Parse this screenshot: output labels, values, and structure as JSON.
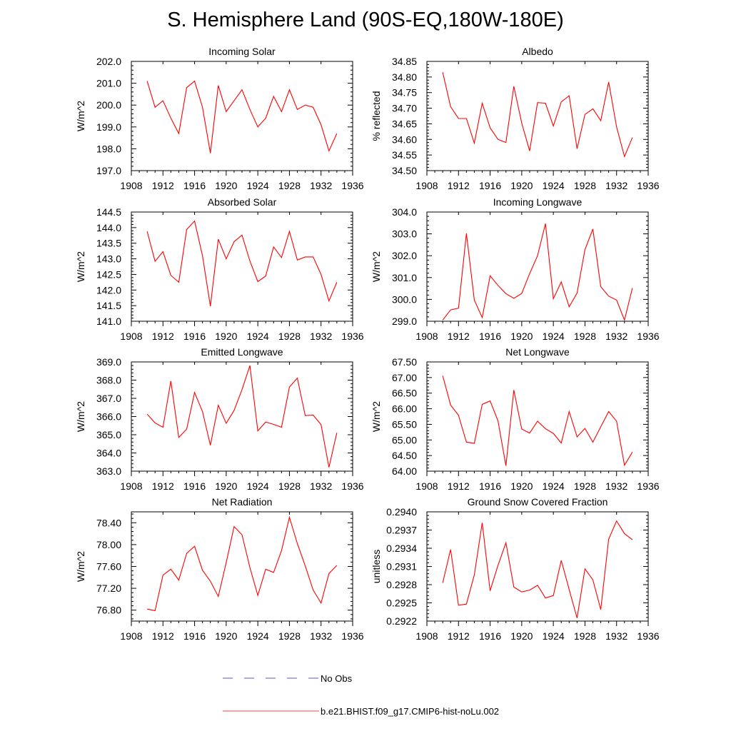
{
  "title": "S. Hemisphere Land (90S-EQ,180W-180E)",
  "colors": {
    "model": "#ff0000",
    "obs": "#2020c0",
    "axis": "#000000"
  },
  "legend": [
    {
      "label": "No Obs",
      "style": "dashed",
      "color": "#2020c0"
    },
    {
      "label": "b.e21.BHIST.f09_g17.CMIP6-hist-noLu.002",
      "style": "solid",
      "color": "#ff0000"
    }
  ],
  "chart_data": [
    {
      "type": "line",
      "title": "Incoming Solar",
      "ylabel": "W/m^2",
      "xlim": [
        1908,
        1936
      ],
      "xticks": [
        1908,
        1912,
        1916,
        1920,
        1924,
        1928,
        1932,
        1936
      ],
      "xtick_labels": [
        "1908",
        "1912",
        "1916",
        "1920",
        "1924",
        "1928",
        "1932",
        "1936"
      ],
      "ylim": [
        197.0,
        202.0
      ],
      "yticks": [
        197.0,
        198.0,
        199.0,
        200.0,
        201.0,
        202.0
      ],
      "ytick_labels": [
        "197.0",
        "198.0",
        "199.0",
        "200.0",
        "201.0",
        "202.0"
      ],
      "x": [
        1910,
        1911,
        1912,
        1913,
        1914,
        1915,
        1916,
        1917,
        1918,
        1919,
        1920,
        1921,
        1922,
        1923,
        1924,
        1925,
        1926,
        1927,
        1928,
        1929,
        1930,
        1931,
        1932,
        1933,
        1934
      ],
      "series": [
        {
          "name": "b.e21.BHIST.f09_g17.CMIP6-hist-noLu.002",
          "values": [
            201.1,
            199.9,
            200.2,
            199.4,
            198.7,
            200.8,
            201.1,
            199.9,
            197.8,
            200.9,
            199.7,
            200.2,
            200.7,
            199.8,
            199.0,
            199.4,
            200.4,
            199.7,
            200.7,
            199.8,
            200.0,
            199.9,
            199.1,
            197.9,
            198.7
          ]
        }
      ]
    },
    {
      "type": "line",
      "title": "Albedo",
      "ylabel": "% reflected",
      "xlim": [
        1908,
        1936
      ],
      "xticks": [
        1908,
        1912,
        1916,
        1920,
        1924,
        1928,
        1932,
        1936
      ],
      "xtick_labels": [
        "1908",
        "1912",
        "1916",
        "1920",
        "1924",
        "1928",
        "1932",
        "1936"
      ],
      "ylim": [
        34.5,
        34.85
      ],
      "yticks": [
        34.5,
        34.55,
        34.6,
        34.65,
        34.7,
        34.75,
        34.8,
        34.85
      ],
      "ytick_labels": [
        "34.50",
        "34.55",
        "34.60",
        "34.65",
        "34.70",
        "34.75",
        "34.80",
        "34.85"
      ],
      "x": [
        1910,
        1911,
        1912,
        1913,
        1914,
        1915,
        1916,
        1917,
        1918,
        1919,
        1920,
        1921,
        1922,
        1923,
        1924,
        1925,
        1926,
        1927,
        1928,
        1929,
        1930,
        1931,
        1932,
        1933,
        1934
      ],
      "series": [
        {
          "name": "b.e21.BHIST.f09_g17.CMIP6-hist-noLu.002",
          "values": [
            34.815,
            34.705,
            34.667,
            34.667,
            34.588,
            34.716,
            34.637,
            34.6,
            34.59,
            34.77,
            34.652,
            34.563,
            34.718,
            34.716,
            34.643,
            34.72,
            34.74,
            34.57,
            34.68,
            34.698,
            34.66,
            34.784,
            34.64,
            34.545,
            34.606
          ]
        }
      ]
    },
    {
      "type": "line",
      "title": "Absorbed Solar",
      "ylabel": "W/m^2",
      "xlim": [
        1908,
        1936
      ],
      "xticks": [
        1908,
        1912,
        1916,
        1920,
        1924,
        1928,
        1932,
        1936
      ],
      "xtick_labels": [
        "1908",
        "1912",
        "1916",
        "1920",
        "1924",
        "1928",
        "1932",
        "1936"
      ],
      "ylim": [
        141.0,
        144.5
      ],
      "yticks": [
        141.0,
        141.5,
        142.0,
        142.5,
        143.0,
        143.5,
        144.0,
        144.5
      ],
      "ytick_labels": [
        "141.0",
        "141.5",
        "142.0",
        "142.5",
        "143.0",
        "143.5",
        "144.0",
        "144.5"
      ],
      "x": [
        1910,
        1911,
        1912,
        1913,
        1914,
        1915,
        1916,
        1917,
        1918,
        1919,
        1920,
        1921,
        1922,
        1923,
        1924,
        1925,
        1926,
        1927,
        1928,
        1929,
        1930,
        1931,
        1932,
        1933,
        1934
      ],
      "series": [
        {
          "name": "b.e21.BHIST.f09_g17.CMIP6-hist-noLu.002",
          "values": [
            143.88,
            142.92,
            143.23,
            142.47,
            142.25,
            143.94,
            144.21,
            143.1,
            141.48,
            143.63,
            143.0,
            143.55,
            143.76,
            142.93,
            142.27,
            142.45,
            143.38,
            143.04,
            143.88,
            142.96,
            143.06,
            143.06,
            142.5,
            141.65,
            142.25
          ]
        }
      ]
    },
    {
      "type": "line",
      "title": "Incoming Longwave",
      "ylabel": "W/m^2",
      "xlim": [
        1908,
        1936
      ],
      "xticks": [
        1908,
        1912,
        1916,
        1920,
        1924,
        1928,
        1932,
        1936
      ],
      "xtick_labels": [
        "1908",
        "1912",
        "1916",
        "1920",
        "1924",
        "1928",
        "1932",
        "1936"
      ],
      "ylim": [
        299.0,
        304.0
      ],
      "yticks": [
        299.0,
        300.0,
        301.0,
        302.0,
        303.0,
        304.0
      ],
      "ytick_labels": [
        "299.0",
        "300.0",
        "301.0",
        "302.0",
        "303.0",
        "304.0"
      ],
      "x": [
        1910,
        1911,
        1912,
        1913,
        1914,
        1915,
        1916,
        1917,
        1918,
        1919,
        1920,
        1921,
        1922,
        1923,
        1924,
        1925,
        1926,
        1927,
        1928,
        1929,
        1930,
        1931,
        1932,
        1933,
        1934
      ],
      "series": [
        {
          "name": "b.e21.BHIST.f09_g17.CMIP6-hist-noLu.002",
          "values": [
            299.05,
            299.52,
            299.6,
            303.02,
            299.97,
            299.17,
            301.08,
            300.64,
            300.26,
            300.05,
            300.27,
            301.18,
            302.0,
            303.47,
            300.03,
            300.8,
            299.66,
            300.29,
            302.28,
            303.22,
            300.58,
            300.15,
            299.97,
            299.05,
            300.52
          ]
        }
      ]
    },
    {
      "type": "line",
      "title": "Emitted Longwave",
      "ylabel": "W/m^2",
      "xlim": [
        1908,
        1936
      ],
      "xticks": [
        1908,
        1912,
        1916,
        1920,
        1924,
        1928,
        1932,
        1936
      ],
      "xtick_labels": [
        "1908",
        "1912",
        "1916",
        "1920",
        "1924",
        "1928",
        "1932",
        "1936"
      ],
      "ylim": [
        363.0,
        369.0
      ],
      "yticks": [
        363.0,
        364.0,
        365.0,
        366.0,
        367.0,
        368.0,
        369.0
      ],
      "ytick_labels": [
        "363.0",
        "364.0",
        "365.0",
        "366.0",
        "367.0",
        "368.0",
        "369.0"
      ],
      "x": [
        1910,
        1911,
        1912,
        1913,
        1914,
        1915,
        1916,
        1917,
        1918,
        1919,
        1920,
        1921,
        1922,
        1923,
        1924,
        1925,
        1926,
        1927,
        1928,
        1929,
        1930,
        1931,
        1932,
        1933,
        1934
      ],
      "series": [
        {
          "name": "b.e21.BHIST.f09_g17.CMIP6-hist-noLu.002",
          "values": [
            366.13,
            365.65,
            365.41,
            367.95,
            364.85,
            365.31,
            367.32,
            366.28,
            364.42,
            366.62,
            365.63,
            366.34,
            367.48,
            368.8,
            365.21,
            365.7,
            365.57,
            365.41,
            367.62,
            368.11,
            366.05,
            366.08,
            365.56,
            363.21,
            365.11
          ]
        }
      ]
    },
    {
      "type": "line",
      "title": "Net Longwave",
      "ylabel": "W/m^2",
      "xlim": [
        1908,
        1936
      ],
      "xticks": [
        1908,
        1912,
        1916,
        1920,
        1924,
        1928,
        1932,
        1936
      ],
      "xtick_labels": [
        "1908",
        "1912",
        "1916",
        "1920",
        "1924",
        "1928",
        "1932",
        "1936"
      ],
      "ylim": [
        64.0,
        67.5
      ],
      "yticks": [
        64.0,
        64.5,
        65.0,
        65.5,
        66.0,
        66.5,
        67.0,
        67.5
      ],
      "ytick_labels": [
        "64.00",
        "64.50",
        "65.00",
        "65.50",
        "66.00",
        "66.50",
        "67.00",
        "67.50"
      ],
      "x": [
        1910,
        1911,
        1912,
        1913,
        1914,
        1915,
        1916,
        1917,
        1918,
        1919,
        1920,
        1921,
        1922,
        1923,
        1924,
        1925,
        1926,
        1927,
        1928,
        1929,
        1930,
        1931,
        1932,
        1933,
        1934
      ],
      "series": [
        {
          "name": "b.e21.BHIST.f09_g17.CMIP6-hist-noLu.002",
          "values": [
            67.06,
            66.12,
            65.79,
            64.93,
            64.89,
            66.14,
            66.25,
            65.61,
            64.17,
            66.6,
            65.35,
            65.22,
            65.6,
            65.36,
            65.21,
            64.9,
            65.91,
            65.1,
            65.37,
            64.93,
            65.42,
            65.91,
            65.6,
            64.19,
            64.61
          ]
        }
      ]
    },
    {
      "type": "line",
      "title": "Net Radiation",
      "ylabel": "W/m^2",
      "xlim": [
        1908,
        1936
      ],
      "xticks": [
        1908,
        1912,
        1916,
        1920,
        1924,
        1928,
        1932,
        1936
      ],
      "xtick_labels": [
        "1908",
        "1912",
        "1916",
        "1920",
        "1924",
        "1928",
        "1932",
        "1936"
      ],
      "ylim": [
        76.6,
        78.6
      ],
      "yticks": [
        76.8,
        77.2,
        77.6,
        78.0,
        78.4
      ],
      "ytick_labels": [
        "76.80",
        "77.20",
        "77.60",
        "78.00",
        "78.40"
      ],
      "x": [
        1910,
        1911,
        1912,
        1913,
        1914,
        1915,
        1916,
        1917,
        1918,
        1919,
        1920,
        1921,
        1922,
        1923,
        1924,
        1925,
        1926,
        1927,
        1928,
        1929,
        1930,
        1931,
        1932,
        1933,
        1934
      ],
      "series": [
        {
          "name": "b.e21.BHIST.f09_g17.CMIP6-hist-noLu.002",
          "values": [
            76.82,
            76.79,
            77.44,
            77.55,
            77.35,
            77.84,
            77.97,
            77.53,
            77.33,
            77.05,
            77.67,
            78.33,
            78.18,
            77.58,
            77.07,
            77.55,
            77.49,
            77.89,
            78.5,
            78.02,
            77.61,
            77.17,
            76.93,
            77.47,
            77.62
          ]
        }
      ]
    },
    {
      "type": "line",
      "title": "Ground Snow Covered Fraction",
      "ylabel": "unitless",
      "xlim": [
        1908,
        1936
      ],
      "xticks": [
        1908,
        1912,
        1916,
        1920,
        1924,
        1928,
        1932,
        1936
      ],
      "xtick_labels": [
        "1908",
        "1912",
        "1916",
        "1920",
        "1924",
        "1928",
        "1932",
        "1936"
      ],
      "ylim": [
        0.2922,
        0.294
      ],
      "yticks": [
        0.2922,
        0.2925,
        0.2928,
        0.2931,
        0.2934,
        0.2937,
        0.294
      ],
      "ytick_labels": [
        "0.2922",
        "0.2925",
        "0.2928",
        "0.2931",
        "0.2934",
        "0.2937",
        "0.2940"
      ],
      "x": [
        1910,
        1911,
        1912,
        1913,
        1914,
        1915,
        1916,
        1917,
        1918,
        1919,
        1920,
        1921,
        1922,
        1923,
        1924,
        1925,
        1926,
        1927,
        1928,
        1929,
        1930,
        1931,
        1932,
        1933,
        1934
      ],
      "series": [
        {
          "name": "b.e21.BHIST.f09_g17.CMIP6-hist-noLu.002",
          "values": [
            0.29283,
            0.29338,
            0.29246,
            0.29248,
            0.29296,
            0.29382,
            0.2927,
            0.29312,
            0.29349,
            0.29276,
            0.29268,
            0.29271,
            0.29279,
            0.29258,
            0.29262,
            0.2932,
            0.29272,
            0.29225,
            0.29306,
            0.29288,
            0.29239,
            0.29355,
            0.29385,
            0.29364,
            0.29354
          ]
        }
      ]
    }
  ]
}
